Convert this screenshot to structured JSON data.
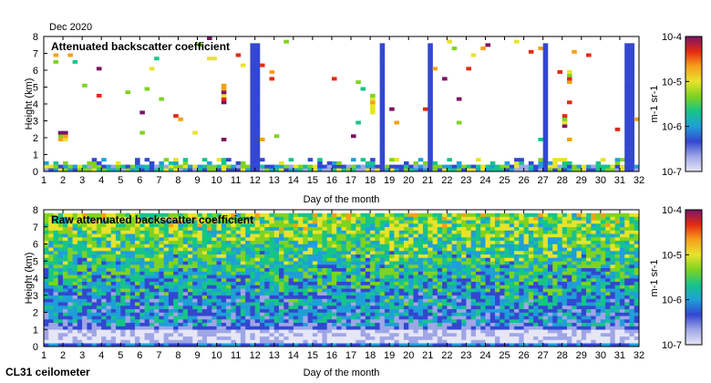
{
  "figure": {
    "date_label": "Dec 2020",
    "instrument_label": "CL31 ceilometer",
    "colors": {
      "background": "#ffffff",
      "cmap": [
        "#e6e6f5",
        "#9fa6e6",
        "#3347d0",
        "#1f9fd8",
        "#16c48a",
        "#7ed321",
        "#e8e32a",
        "#f6a01a",
        "#e52a12",
        "#7a1466"
      ]
    }
  },
  "chart_data": [
    {
      "type": "heatmap",
      "title": "Attenuated backscatter coefficient",
      "xlabel": "Day of the month",
      "ylabel": "Height (km)",
      "xlim": [
        1,
        32
      ],
      "ylim": [
        0,
        8
      ],
      "xticks": [
        "1",
        "2",
        "3",
        "4",
        "5",
        "6",
        "7",
        "8",
        "9",
        "10",
        "11",
        "12",
        "13",
        "14",
        "15",
        "16",
        "17",
        "18",
        "19",
        "20",
        "21",
        "22",
        "23",
        "24",
        "25",
        "26",
        "27",
        "28",
        "29",
        "30",
        "31",
        "32"
      ],
      "yticks": [
        "0",
        "1",
        "2",
        "3",
        "4",
        "5",
        "6",
        "7",
        "8"
      ],
      "colorbar": {
        "label": "m-1 sr-1",
        "ticks": [
          "10-7",
          "10-6",
          "10-5",
          "10-4"
        ],
        "range": [
          -7,
          -4
        ],
        "scale": "log"
      },
      "features": {
        "boundary_layer_top_km": 0.5,
        "cloud_columns_day": [
          12.0,
          18.6,
          21.1,
          27.1,
          31.3,
          31.6
        ],
        "elevated_layers": [
          {
            "day_start": 10.2,
            "day_end": 10.6,
            "height_low_km": 4.0,
            "height_high_km": 5.2
          },
          {
            "day_start": 1.7,
            "day_end": 2.3,
            "height_low_km": 1.8,
            "height_high_km": 2.4
          },
          {
            "day_start": 18.0,
            "day_end": 18.3,
            "height_low_km": 3.4,
            "height_high_km": 4.6
          },
          {
            "day_start": 28.0,
            "day_end": 28.3,
            "height_low_km": 2.6,
            "height_high_km": 3.4
          },
          {
            "day_start": 28.3,
            "day_end": 28.6,
            "height_low_km": 5.2,
            "height_high_km": 6.0
          }
        ]
      }
    },
    {
      "type": "heatmap",
      "title": "Raw attenuated backscatter coefficient",
      "xlabel": "Day of the month",
      "ylabel": "Height (km)",
      "xlim": [
        1,
        32
      ],
      "ylim": [
        0,
        8
      ],
      "xticks": [
        "1",
        "2",
        "3",
        "4",
        "5",
        "6",
        "7",
        "8",
        "9",
        "10",
        "11",
        "12",
        "13",
        "14",
        "15",
        "16",
        "17",
        "18",
        "19",
        "20",
        "21",
        "22",
        "23",
        "24",
        "25",
        "26",
        "27",
        "28",
        "29",
        "30",
        "31",
        "32"
      ],
      "yticks": [
        "0",
        "1",
        "2",
        "3",
        "4",
        "5",
        "6",
        "7",
        "8"
      ],
      "colorbar": {
        "label": "m-1 sr-1",
        "ticks": [
          "10-7",
          "10-6",
          "10-5",
          "10-4"
        ],
        "range": [
          -7,
          -4
        ],
        "scale": "log"
      },
      "features": {
        "noise_floor_below_km": 1.2,
        "signal_increases_with_height": true,
        "clear_low_layer_km": [
          0.2,
          1.0
        ]
      }
    }
  ]
}
